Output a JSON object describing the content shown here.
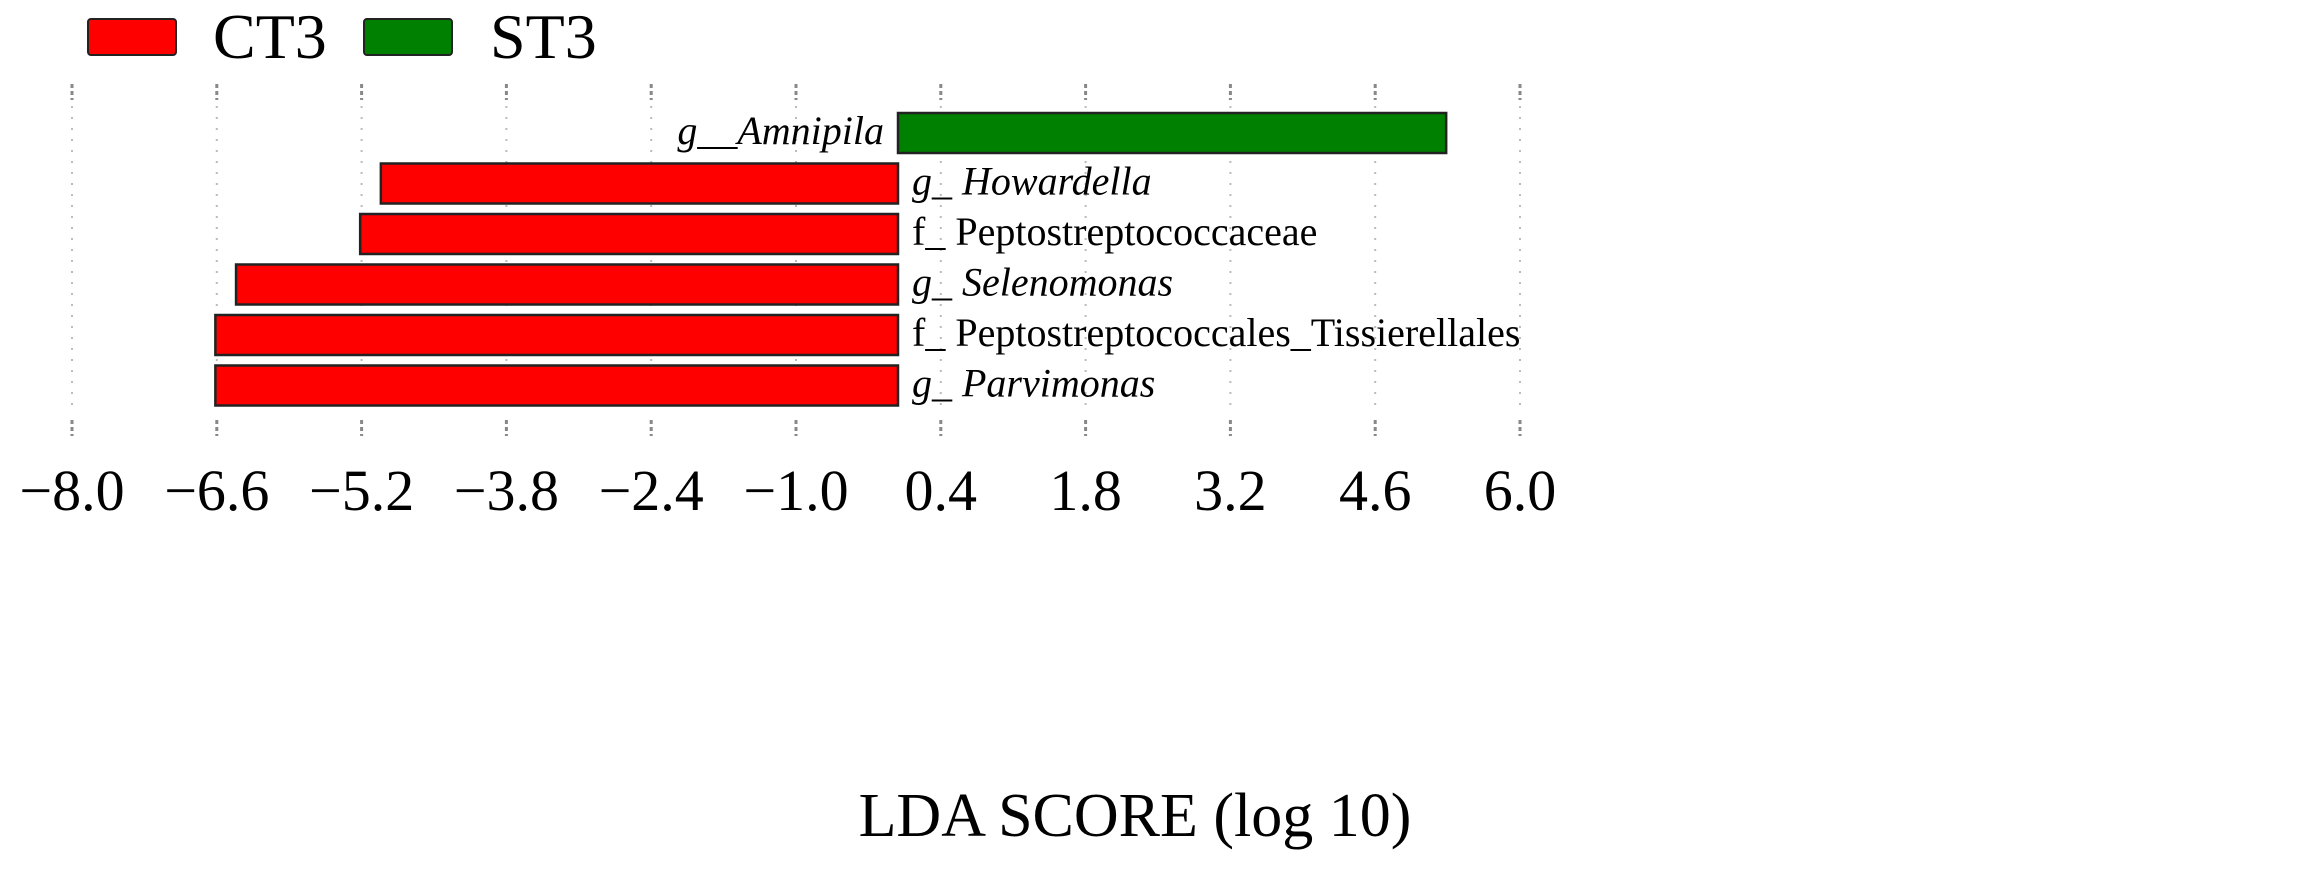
{
  "chart_data": {
    "type": "bar",
    "orientation": "horizontal",
    "title": "",
    "xlabel": "LDA SCORE (log 10)",
    "ylabel": "",
    "xlim": [
      -8.0,
      6.0
    ],
    "xticks": [
      "−8.0",
      "−6.6",
      "−5.2",
      "−3.8",
      "−2.4",
      "−1.0",
      "0.4",
      "1.8",
      "3.2",
      "4.6",
      "6.0"
    ],
    "grid": true,
    "legend_position": "top-left",
    "legend": [
      {
        "name": "CT3",
        "color": "#ff0000"
      },
      {
        "name": "ST3",
        "color": "#008000"
      }
    ],
    "bars": [
      {
        "label_prefix": "g__",
        "label_name": "Amnipila",
        "italic": true,
        "group": "ST3",
        "value": 5.3
      },
      {
        "label_prefix": "g_ ",
        "label_name": "Howardella",
        "italic": true,
        "group": "CT3",
        "value": -5.0
      },
      {
        "label_prefix": "f_ ",
        "label_name": "Peptostreptococcaceae",
        "italic": false,
        "group": "CT3",
        "value": -5.2
      },
      {
        "label_prefix": "g_ ",
        "label_name": "Selenomonas",
        "italic": true,
        "group": "CT3",
        "value": -6.4
      },
      {
        "label_prefix": "f_ ",
        "label_name": "Peptostreptococcales_Tissierellales",
        "italic": false,
        "group": "CT3",
        "value": -6.6
      },
      {
        "label_prefix": "g_ ",
        "label_name": "Parvimonas",
        "italic": true,
        "group": "CT3",
        "value": -6.6
      }
    ]
  }
}
